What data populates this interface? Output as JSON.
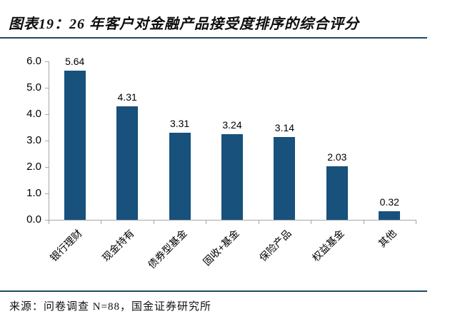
{
  "header": {
    "title": "图表19：26 年客户对金融产品接受度排序的综合评分"
  },
  "chart_data": {
    "type": "bar",
    "title": "图表19：26 年客户对金融产品接受度排序的综合评分",
    "categories": [
      "银行理财",
      "现金持有",
      "债券型基金",
      "固收+基金",
      "保险产品",
      "权益基金",
      "其他"
    ],
    "values": [
      5.64,
      4.31,
      3.31,
      3.24,
      3.14,
      2.03,
      0.32
    ],
    "data_labels": [
      "5.64",
      "4.31",
      "3.31",
      "3.24",
      "3.14",
      "2.03",
      "0.32"
    ],
    "xlabel": "",
    "ylabel": "",
    "ylim": [
      0,
      6
    ],
    "ytick_step": 1.0,
    "yticks": [
      "0.0",
      "1.0",
      "2.0",
      "3.0",
      "4.0",
      "5.0",
      "6.0"
    ],
    "grid": false,
    "legend_position": "none",
    "xtick_label_rotation_deg": 45
  },
  "footer": {
    "source": "来源：问卷调查 N=88，国金证券研究所"
  },
  "colors": {
    "bar": "#17517C",
    "rule": "#1C4A66",
    "axis": "#A6A6A6",
    "text": "#000000"
  }
}
